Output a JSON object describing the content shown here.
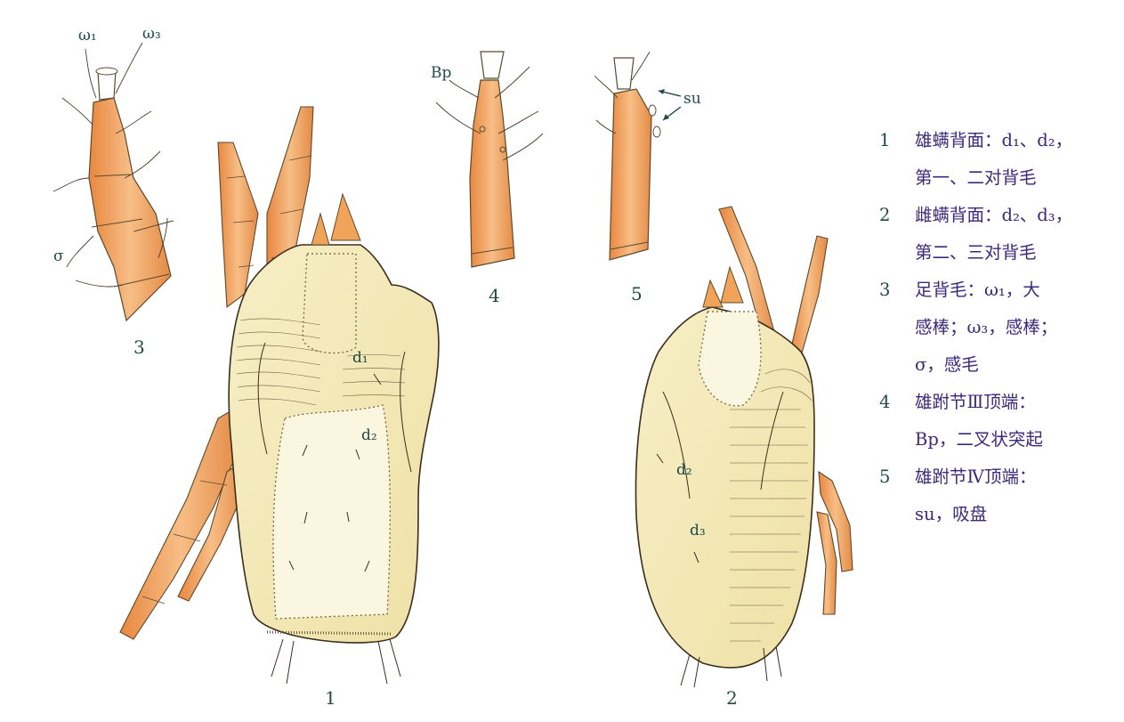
{
  "figure_numbers": [
    "1",
    "2",
    "3",
    "4",
    "5"
  ],
  "labels": {
    "omega1": "ω₁",
    "omega3": "ω₃",
    "sigma": "σ",
    "bp": "Bp",
    "su": "su",
    "fig1_d1": "d₁",
    "fig1_d2": "d₂",
    "fig2_d2": "d₂",
    "fig2_d3": "d₃"
  },
  "legend": [
    {
      "num": "1",
      "lines": [
        "雄螨背面：d₁、d₂，",
        "第一、二对背毛"
      ]
    },
    {
      "num": "2",
      "lines": [
        "雌螨背面：d₂、d₃，",
        "第二、三对背毛"
      ]
    },
    {
      "num": "3",
      "lines": [
        "足背毛：ω₁，大",
        "感棒；ω₃，感棒；",
        "σ，感毛"
      ]
    },
    {
      "num": "4",
      "lines": [
        "雄跗节Ⅲ顶端：",
        "Bp，二叉状突起"
      ]
    },
    {
      "num": "5",
      "lines": [
        "雄跗节Ⅳ顶端：",
        "su，吸盘"
      ]
    }
  ],
  "colors": {
    "body_fill": "#f5ecbe",
    "leg_fill": "#f3a561",
    "leg_dark": "#d9803a",
    "outline": "#5a4a2e",
    "label": "#1f4a48",
    "legend_text": "#3b2a7a"
  }
}
